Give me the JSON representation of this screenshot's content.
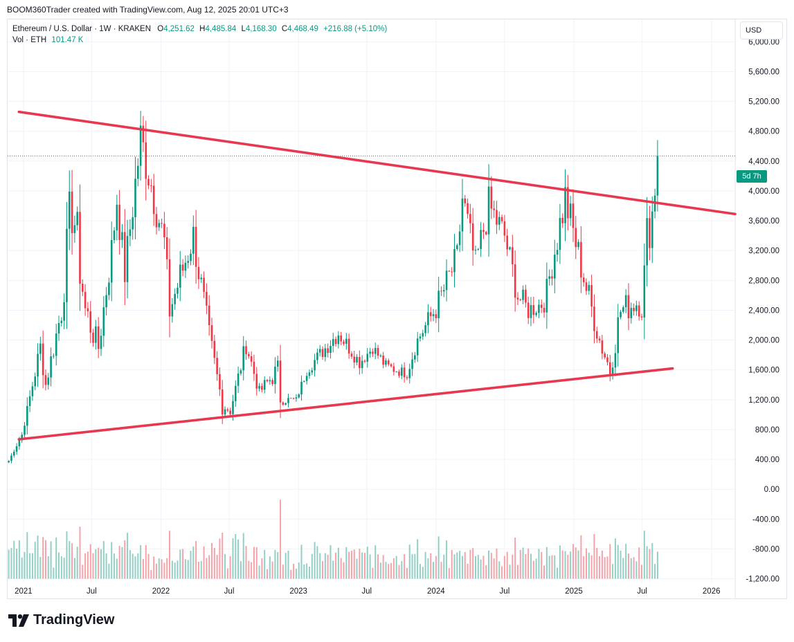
{
  "header": {
    "attribution": "BOOM360Trader created with TradingView.com, Aug 12, 2025 20:01 UTC+3"
  },
  "legend": {
    "symbol": "Ethereum / U.S. Dollar · 1W · KRAKEN",
    "o_label": "O",
    "o_value": "4,251.62",
    "h_label": "H",
    "h_value": "4,485.84",
    "l_label": "L",
    "l_value": "4,168.30",
    "c_label": "C",
    "c_value": "4,468.49",
    "change": "+216.88 (+5.10%)",
    "volume_label": "Vol · ETH",
    "volume_value": "101.47 K"
  },
  "toolbar": {
    "currency": "USD"
  },
  "price_tag": {
    "countdown": "5d 7h",
    "price": 4468.49
  },
  "brand": {
    "name": "TradingView"
  },
  "colors": {
    "up": "#089981",
    "down": "#f23645",
    "trendline": "#e8384f",
    "vol_up": "#93cfc4",
    "vol_down": "#f5a3a9",
    "grid": "#f0f3fa"
  },
  "chart_data": {
    "type": "candlestick",
    "title": "Ethereum / U.S. Dollar · 1W · KRAKEN",
    "x_ticks": [
      "2021",
      "Jul",
      "2022",
      "Jul",
      "2023",
      "Jul",
      "2024",
      "Jul",
      "2025",
      "Jul",
      "2026"
    ],
    "y_ticks": [
      "6,000.00",
      "5,600.00",
      "5,200.00",
      "4,800.00",
      "4,400.00",
      "4,000.00",
      "3,600.00",
      "3,200.00",
      "2,800.00",
      "2,400.00",
      "2,000.00",
      "1,600.00",
      "1,200.00",
      "800.00",
      "400.00",
      "0.00",
      "-400.00",
      "-800.00",
      "-1,200.00"
    ],
    "ylim": [
      -1250,
      6300
    ],
    "xlim": [
      "2020-11-20",
      "2026-03-05"
    ],
    "grid": true,
    "trendlines": [
      {
        "points": [
          [
            "2020-12-20",
            5060
          ],
          [
            "2026-03-05",
            3690
          ]
        ]
      },
      {
        "points": [
          [
            "2020-12-20",
            670
          ],
          [
            "2025-09-20",
            1620
          ]
        ]
      }
    ],
    "anchors": [
      [
        "2020-11-23",
        380,
        7
      ],
      [
        "2020-12-28",
        730,
        12
      ],
      [
        "2021-02-15",
        1900,
        20
      ],
      [
        "2021-03-01",
        1400,
        18
      ],
      [
        "2021-04-12",
        2400,
        20
      ],
      [
        "2021-05-10",
        3900,
        35
      ],
      [
        "2021-06-14",
        2400,
        25
      ],
      [
        "2021-07-19",
        1900,
        20
      ],
      [
        "2021-08-23",
        3200,
        18
      ],
      [
        "2021-09-06",
        3900,
        16
      ],
      [
        "2021-09-27",
        2900,
        18
      ],
      [
        "2021-11-08",
        4700,
        16
      ],
      [
        "2021-12-06",
        4100,
        17
      ],
      [
        "2022-01-10",
        3300,
        18
      ],
      [
        "2022-01-24",
        2400,
        22
      ],
      [
        "2022-03-28",
        3400,
        16
      ],
      [
        "2022-05-09",
        2000,
        26
      ],
      [
        "2022-06-13",
        1150,
        30
      ],
      [
        "2022-07-04",
        1050,
        16
      ],
      [
        "2022-08-15",
        1950,
        16
      ],
      [
        "2022-09-19",
        1300,
        15
      ],
      [
        "2022-11-07",
        1600,
        22
      ],
      [
        "2022-11-14",
        1200,
        14
      ],
      [
        "2022-12-26",
        1200,
        8
      ],
      [
        "2023-01-23",
        1600,
        12
      ],
      [
        "2023-04-17",
        2100,
        14
      ],
      [
        "2023-06-12",
        1700,
        12
      ],
      [
        "2023-07-17",
        1900,
        10
      ],
      [
        "2023-08-21",
        1650,
        12
      ],
      [
        "2023-10-16",
        1550,
        10
      ],
      [
        "2023-11-13",
        2000,
        12
      ],
      [
        "2024-01-08",
        2500,
        18
      ],
      [
        "2024-02-26",
        3100,
        16
      ],
      [
        "2024-03-11",
        3900,
        17
      ],
      [
        "2024-04-15",
        3000,
        16
      ],
      [
        "2024-05-20",
        3800,
        16
      ],
      [
        "2024-07-01",
        3400,
        14
      ],
      [
        "2024-08-05",
        2600,
        18
      ],
      [
        "2024-09-02",
        2400,
        14
      ],
      [
        "2024-10-14",
        2500,
        12
      ],
      [
        "2024-11-11",
        3200,
        17
      ],
      [
        "2024-12-09",
        3900,
        18
      ],
      [
        "2025-01-06",
        3300,
        17
      ],
      [
        "2025-02-03",
        2700,
        20
      ],
      [
        "2025-03-10",
        2000,
        18
      ],
      [
        "2025-04-07",
        1600,
        22
      ],
      [
        "2025-05-05",
        2400,
        22
      ],
      [
        "2025-06-16",
        2500,
        14
      ],
      [
        "2025-06-30",
        2400,
        12
      ],
      [
        "2025-07-14",
        3400,
        22
      ],
      [
        "2025-07-28",
        3700,
        20
      ],
      [
        "2025-08-11",
        4460,
        15
      ]
    ]
  }
}
